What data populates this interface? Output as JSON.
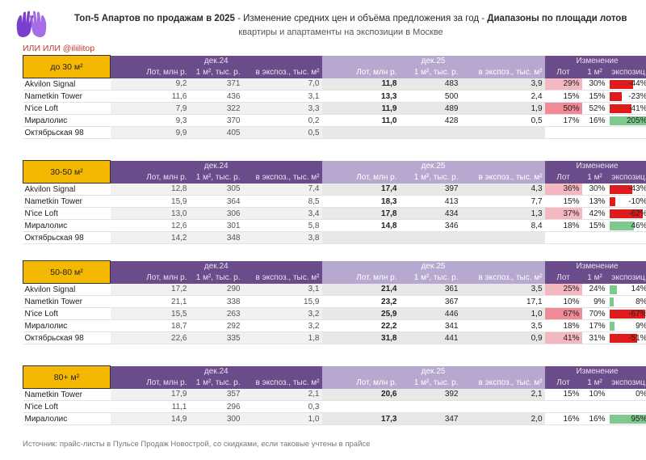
{
  "header": {
    "title_bold": "Топ-5 Апартов по продажам в 2025",
    "title_mid": " - Изменение средних цен и объёма предложения за год - ",
    "title_bold2": "Диапазоны по площади лотов",
    "subtitle": "квартиры и апартаменты на экспозиции в Москве",
    "handle": "ИЛИ ИЛИ @iliilitop"
  },
  "colors": {
    "accent": "#6b4c8a",
    "size_box": "#f5b800",
    "neg": "#e01b1b",
    "pos": "#7fc88e"
  },
  "labels": {
    "period1": "дек.24",
    "period2": "дек.25",
    "change": "Изменение",
    "col_lot": "Лот, млн р.",
    "col_m2": "1 м², тыс. р.",
    "col_exp": "в экспоз., тыс. м²",
    "ch_lot": "Лот",
    "ch_m2": "1 м²",
    "ch_exp": "экспозиц."
  },
  "sections": [
    {
      "size": "до 30 м²",
      "rows": [
        {
          "name": "Akvilon Signal",
          "a": [
            "9,2",
            "371",
            "7,0"
          ],
          "b": [
            "11,8",
            "483",
            "3,9"
          ],
          "c": [
            "29%",
            "30%",
            "-44%"
          ],
          "e": -44
        },
        {
          "name": "Nametkin Tower",
          "a": [
            "11,6",
            "436",
            "3,1"
          ],
          "b": [
            "13,3",
            "500",
            "2,4"
          ],
          "c": [
            "15%",
            "15%",
            "-23%"
          ],
          "e": -23
        },
        {
          "name": "N'ice Loft",
          "a": [
            "7,9",
            "322",
            "3,3"
          ],
          "b": [
            "11,9",
            "489",
            "1,9"
          ],
          "c": [
            "50%",
            "52%",
            "-41%"
          ],
          "e": -41
        },
        {
          "name": "Миралолис",
          "a": [
            "9,3",
            "370",
            "0,2"
          ],
          "b": [
            "11,0",
            "428",
            "0,5"
          ],
          "c": [
            "17%",
            "16%",
            "205%"
          ],
          "e": 205
        },
        {
          "name": "Октябрьская 98",
          "a": [
            "9,9",
            "405",
            "0,5"
          ],
          "b": [
            "",
            "",
            ""
          ],
          "c": [
            "",
            "",
            ""
          ],
          "e": 0
        }
      ]
    },
    {
      "size": "30-50 м²",
      "rows": [
        {
          "name": "Akvilon Signal",
          "a": [
            "12,8",
            "305",
            "7,4"
          ],
          "b": [
            "17,4",
            "397",
            "4,3"
          ],
          "c": [
            "36%",
            "30%",
            "-43%"
          ],
          "e": -43
        },
        {
          "name": "Nametkin Tower",
          "a": [
            "15,9",
            "364",
            "8,5"
          ],
          "b": [
            "18,3",
            "413",
            "7,7"
          ],
          "c": [
            "15%",
            "13%",
            "-10%"
          ],
          "e": -10
        },
        {
          "name": "N'ice Loft",
          "a": [
            "13,0",
            "306",
            "3,4"
          ],
          "b": [
            "17,8",
            "434",
            "1,3"
          ],
          "c": [
            "37%",
            "42%",
            "-62%"
          ],
          "e": -62
        },
        {
          "name": "Миралолис",
          "a": [
            "12,6",
            "301",
            "5,8"
          ],
          "b": [
            "14,8",
            "346",
            "8,4"
          ],
          "c": [
            "18%",
            "15%",
            "46%"
          ],
          "e": 46
        },
        {
          "name": "Октябрьская 98",
          "a": [
            "14,2",
            "348",
            "3,8"
          ],
          "b": [
            "",
            "",
            ""
          ],
          "c": [
            "",
            "",
            ""
          ],
          "e": 0
        }
      ]
    },
    {
      "size": "50-80 м²",
      "rows": [
        {
          "name": "Akvilon Signal",
          "a": [
            "17,2",
            "290",
            "3,1"
          ],
          "b": [
            "21,4",
            "361",
            "3,5"
          ],
          "c": [
            "25%",
            "24%",
            "14%"
          ],
          "e": 14
        },
        {
          "name": "Nametkin Tower",
          "a": [
            "21,1",
            "338",
            "15,9"
          ],
          "b": [
            "23,2",
            "367",
            "17,1"
          ],
          "c": [
            "10%",
            "9%",
            "8%"
          ],
          "e": 8
        },
        {
          "name": "N'ice Loft",
          "a": [
            "15,5",
            "263",
            "3,2"
          ],
          "b": [
            "25,9",
            "446",
            "1,0"
          ],
          "c": [
            "67%",
            "70%",
            "-67%"
          ],
          "e": -67
        },
        {
          "name": "Миралолис",
          "a": [
            "18,7",
            "292",
            "3,2"
          ],
          "b": [
            "22,2",
            "341",
            "3,5"
          ],
          "c": [
            "18%",
            "17%",
            "9%"
          ],
          "e": 9
        },
        {
          "name": "Октябрьская 98",
          "a": [
            "22,6",
            "335",
            "1,8"
          ],
          "b": [
            "31,8",
            "441",
            "0,9"
          ],
          "c": [
            "41%",
            "31%",
            "-51%"
          ],
          "e": -51
        }
      ]
    },
    {
      "size": "80+ м²",
      "rows": [
        {
          "name": "Nametkin Tower",
          "a": [
            "17,9",
            "357",
            "2,1"
          ],
          "b": [
            "20,6",
            "392",
            "2,1"
          ],
          "c": [
            "15%",
            "10%",
            "0%"
          ],
          "e": 0
        },
        {
          "name": "N'ice Loft",
          "a": [
            "11,1",
            "296",
            "0,3"
          ],
          "b": [
            "",
            "",
            ""
          ],
          "c": [
            "",
            "",
            ""
          ],
          "e": 0
        },
        {
          "name": "Миралолис",
          "a": [
            "14,9",
            "300",
            "1,0"
          ],
          "b": [
            "17,3",
            "347",
            "2,0"
          ],
          "c": [
            "16%",
            "16%",
            "95%"
          ],
          "e": 95
        }
      ]
    }
  ],
  "footer": "Источник: прайс-листы в Пульсе Продаж Новострой, со скидками, если таковые учтены в прайсе"
}
